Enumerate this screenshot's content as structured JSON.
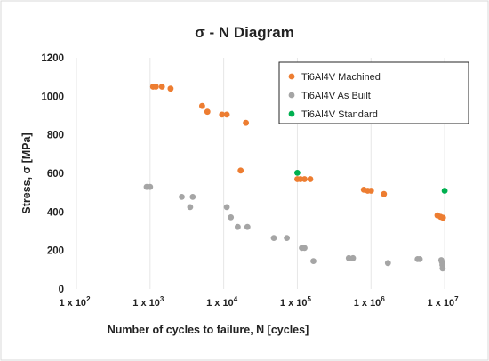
{
  "chart_data": {
    "type": "scatter",
    "title": "σ - N Diagram",
    "xlabel": "Number of cycles to failure, N [cycles]",
    "ylabel": "Stress, σ [MPa]",
    "x_scale": "log",
    "xlim": [
      100,
      20000000
    ],
    "ylim": [
      0,
      1200
    ],
    "y_ticks": [
      0,
      200,
      400,
      600,
      800,
      1000,
      1200
    ],
    "x_ticks": [
      {
        "value": 100,
        "base": "1 x 10",
        "exp": "2"
      },
      {
        "value": 1000,
        "base": "1 x 10",
        "exp": "3"
      },
      {
        "value": 10000,
        "base": "1 x 10",
        "exp": "4"
      },
      {
        "value": 100000,
        "base": "1 x 10",
        "exp": "5"
      },
      {
        "value": 1000000,
        "base": "1 x 10",
        "exp": "6"
      },
      {
        "value": 10000000,
        "base": "1 x 10",
        "exp": "7"
      }
    ],
    "grid": "vertical",
    "legend_position": "top-right",
    "series": [
      {
        "name": "Ti6Al4V Machined",
        "color": "#ED7D31",
        "points": [
          [
            1100,
            1050
          ],
          [
            1200,
            1050
          ],
          [
            1450,
            1050
          ],
          [
            1900,
            1040
          ],
          [
            5100,
            950
          ],
          [
            6000,
            920
          ],
          [
            9500,
            905
          ],
          [
            11000,
            905
          ],
          [
            20000,
            862
          ],
          [
            17000,
            615
          ],
          [
            100000,
            570
          ],
          [
            110000,
            570
          ],
          [
            125000,
            570
          ],
          [
            150000,
            570
          ],
          [
            800000,
            515
          ],
          [
            900000,
            510
          ],
          [
            1000000,
            510
          ],
          [
            1500000,
            493
          ],
          [
            8000000,
            382
          ],
          [
            8800000,
            375
          ],
          [
            9500000,
            370
          ]
        ]
      },
      {
        "name": "Ti6Al4V As Built",
        "color": "#A5A5A5",
        "points": [
          [
            900,
            530
          ],
          [
            1000,
            530
          ],
          [
            2700,
            478
          ],
          [
            3800,
            478
          ],
          [
            3500,
            425
          ],
          [
            11000,
            425
          ],
          [
            12500,
            372
          ],
          [
            15500,
            322
          ],
          [
            21000,
            322
          ],
          [
            48000,
            265
          ],
          [
            72000,
            265
          ],
          [
            115000,
            213
          ],
          [
            125000,
            213
          ],
          [
            165000,
            145
          ],
          [
            500000,
            160
          ],
          [
            570000,
            160
          ],
          [
            1700000,
            135
          ],
          [
            4300000,
            155
          ],
          [
            4600000,
            155
          ],
          [
            9000000,
            150
          ],
          [
            9200000,
            140
          ],
          [
            9300000,
            125
          ],
          [
            9400000,
            107
          ]
        ]
      },
      {
        "name": "Ti6Al4V Standard",
        "color": "#00B050",
        "points": [
          [
            100000,
            603
          ],
          [
            10000000,
            510
          ]
        ]
      }
    ]
  }
}
